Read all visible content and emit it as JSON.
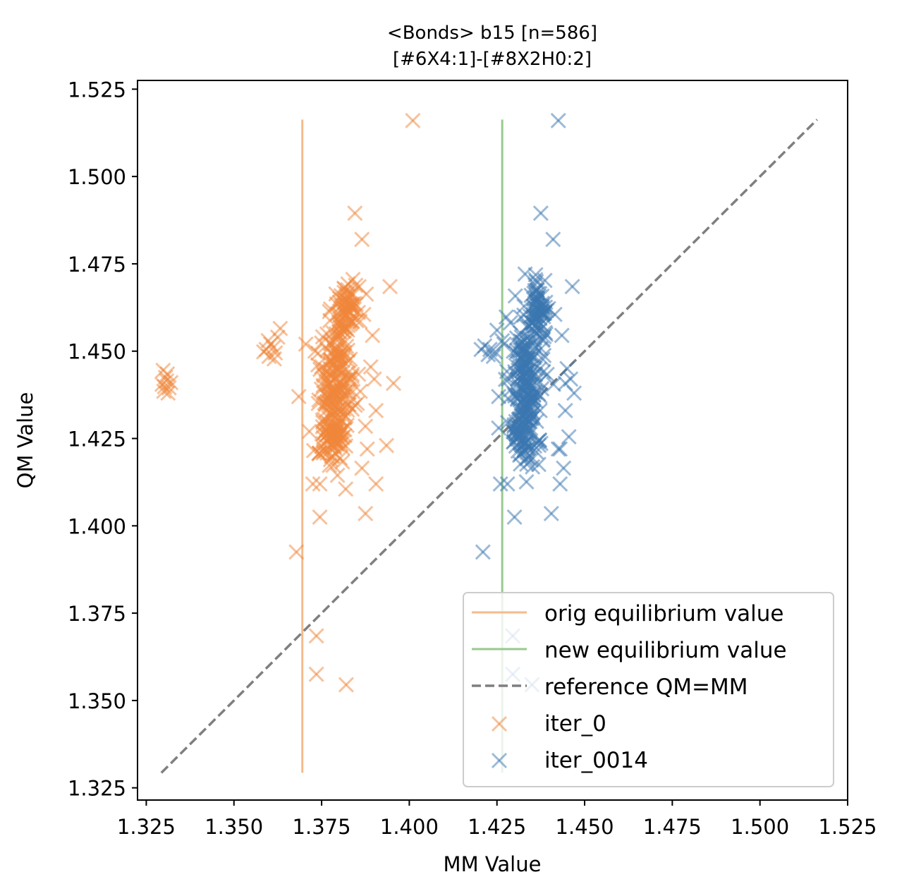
{
  "chart_data": {
    "type": "scatter",
    "title": "<Bonds> b15 [n=586]",
    "subtitle": "[#6X4:1]-[#8X2H0:2]",
    "xlabel": "MM Value",
    "ylabel": "QM Value",
    "xlim": [
      1.3225,
      1.525
    ],
    "ylim": [
      1.3215,
      1.5275
    ],
    "xticks": [
      "1.325",
      "1.350",
      "1.375",
      "1.400",
      "1.425",
      "1.450",
      "1.475",
      "1.500",
      "1.525"
    ],
    "yticks": [
      "1.325",
      "1.350",
      "1.375",
      "1.400",
      "1.425",
      "1.450",
      "1.475",
      "1.500",
      "1.525"
    ],
    "grid": false,
    "legend_position": "lower-right",
    "lines": [
      {
        "name": "orig equilibrium value",
        "style": "solid",
        "color": "#f5bb8c",
        "x": [
          1.3695,
          1.3695
        ],
        "y": [
          1.3293,
          1.5163
        ]
      },
      {
        "name": "new equilibrium value",
        "style": "solid",
        "color": "#98c98e",
        "x": [
          1.4265,
          1.4265
        ],
        "y": [
          1.3293,
          1.5163
        ]
      },
      {
        "name": "reference QM=MM",
        "style": "dashed",
        "color": "#7f7f7f",
        "x": [
          1.3293,
          1.5163
        ],
        "y": [
          1.3293,
          1.5163
        ]
      }
    ],
    "series": [
      {
        "name": "iter_0",
        "color": "#f0853a",
        "marker": "x",
        "points": [
          [
            1.3295,
            1.4405
          ],
          [
            1.3305,
            1.4425
          ],
          [
            1.3315,
            1.4395
          ],
          [
            1.33,
            1.4385
          ],
          [
            1.331,
            1.4435
          ],
          [
            1.332,
            1.441
          ],
          [
            1.3298,
            1.4445
          ],
          [
            1.3312,
            1.438
          ],
          [
            1.3308,
            1.4415
          ],
          [
            1.3302,
            1.4398
          ],
          [
            1.3592,
            1.4505
          ],
          [
            1.3605,
            1.452
          ],
          [
            1.3618,
            1.4495
          ],
          [
            1.36,
            1.4485
          ],
          [
            1.3612,
            1.451
          ],
          [
            1.3625,
            1.454
          ],
          [
            1.3632,
            1.4565
          ],
          [
            1.3598,
            1.453
          ],
          [
            1.3585,
            1.4498
          ],
          [
            1.3615,
            1.4478
          ],
          [
            1.3705,
            1.452
          ],
          [
            1.3685,
            1.437
          ],
          [
            1.3678,
            1.3925
          ],
          [
            1.3735,
            1.3685
          ],
          [
            1.3735,
            1.3575
          ],
          [
            1.382,
            1.3545
          ],
          [
            1.3745,
            1.4025
          ],
          [
            1.3725,
            1.412
          ],
          [
            1.3715,
            1.427
          ],
          [
            1.3745,
            1.412
          ],
          [
            1.3865,
            1.482
          ],
          [
            1.3845,
            1.4895
          ],
          [
            1.3875,
            1.4035
          ],
          [
            1.3905,
            1.412
          ],
          [
            1.3935,
            1.423
          ],
          [
            1.3955,
            1.4408
          ],
          [
            1.3945,
            1.4685
          ],
          [
            1.3895,
            1.4545
          ],
          [
            1.3905,
            1.433
          ],
          [
            1.388,
            1.422
          ],
          [
            1.401,
            1.516
          ],
          [
            1.3865,
            1.4165
          ],
          [
            1.3875,
            1.4285
          ],
          [
            1.386,
            1.4385
          ],
          [
            1.389,
            1.4455
          ],
          [
            1.387,
            1.4605
          ],
          [
            1.39,
            1.442
          ]
        ]
      },
      {
        "name": "iter_0014",
        "color": "#3a76b0",
        "marker": "x",
        "points": [
          [
            1.421,
            1.3925
          ],
          [
            1.4295,
            1.3685
          ],
          [
            1.4295,
            1.3575
          ],
          [
            1.435,
            1.3545
          ],
          [
            1.43,
            1.4025
          ],
          [
            1.426,
            1.412
          ],
          [
            1.428,
            1.412
          ],
          [
            1.4255,
            1.428
          ],
          [
            1.4255,
            1.437
          ],
          [
            1.423,
            1.4505
          ],
          [
            1.4215,
            1.4515
          ],
          [
            1.4245,
            1.4498
          ],
          [
            1.4265,
            1.453
          ],
          [
            1.425,
            1.456
          ],
          [
            1.4225,
            1.449
          ],
          [
            1.4205,
            1.4505
          ],
          [
            1.427,
            1.452
          ],
          [
            1.424,
            1.4485
          ],
          [
            1.4425,
            1.516
          ],
          [
            1.4375,
            1.4895
          ],
          [
            1.441,
            1.482
          ],
          [
            1.4405,
            1.4035
          ],
          [
            1.443,
            1.412
          ],
          [
            1.443,
            1.422
          ],
          [
            1.4445,
            1.433
          ],
          [
            1.4445,
            1.4408
          ],
          [
            1.4465,
            1.4685
          ],
          [
            1.4435,
            1.4545
          ],
          [
            1.446,
            1.442
          ],
          [
            1.447,
            1.438
          ],
          [
            1.445,
            1.445
          ],
          [
            1.4425,
            1.422
          ],
          [
            1.444,
            1.4165
          ],
          [
            1.4415,
            1.4605
          ],
          [
            1.4455,
            1.4255
          ]
        ]
      }
    ],
    "clusters": [
      {
        "series": "iter_0",
        "cx": 1.379,
        "cy": 1.44,
        "sx": 0.0025,
        "sy": 0.011,
        "n": 190
      },
      {
        "series": "iter_0",
        "cx": 1.3825,
        "cy": 1.462,
        "sx": 0.0015,
        "sy": 0.004,
        "n": 70
      },
      {
        "series": "iter_0",
        "cx": 1.378,
        "cy": 1.425,
        "sx": 0.002,
        "sy": 0.004,
        "n": 50
      },
      {
        "series": "iter_0014",
        "cx": 1.4335,
        "cy": 1.44,
        "sx": 0.0025,
        "sy": 0.011,
        "n": 190
      },
      {
        "series": "iter_0014",
        "cx": 1.4365,
        "cy": 1.462,
        "sx": 0.0015,
        "sy": 0.004,
        "n": 70
      },
      {
        "series": "iter_0014",
        "cx": 1.4325,
        "cy": 1.425,
        "sx": 0.002,
        "sy": 0.004,
        "n": 50
      }
    ]
  }
}
